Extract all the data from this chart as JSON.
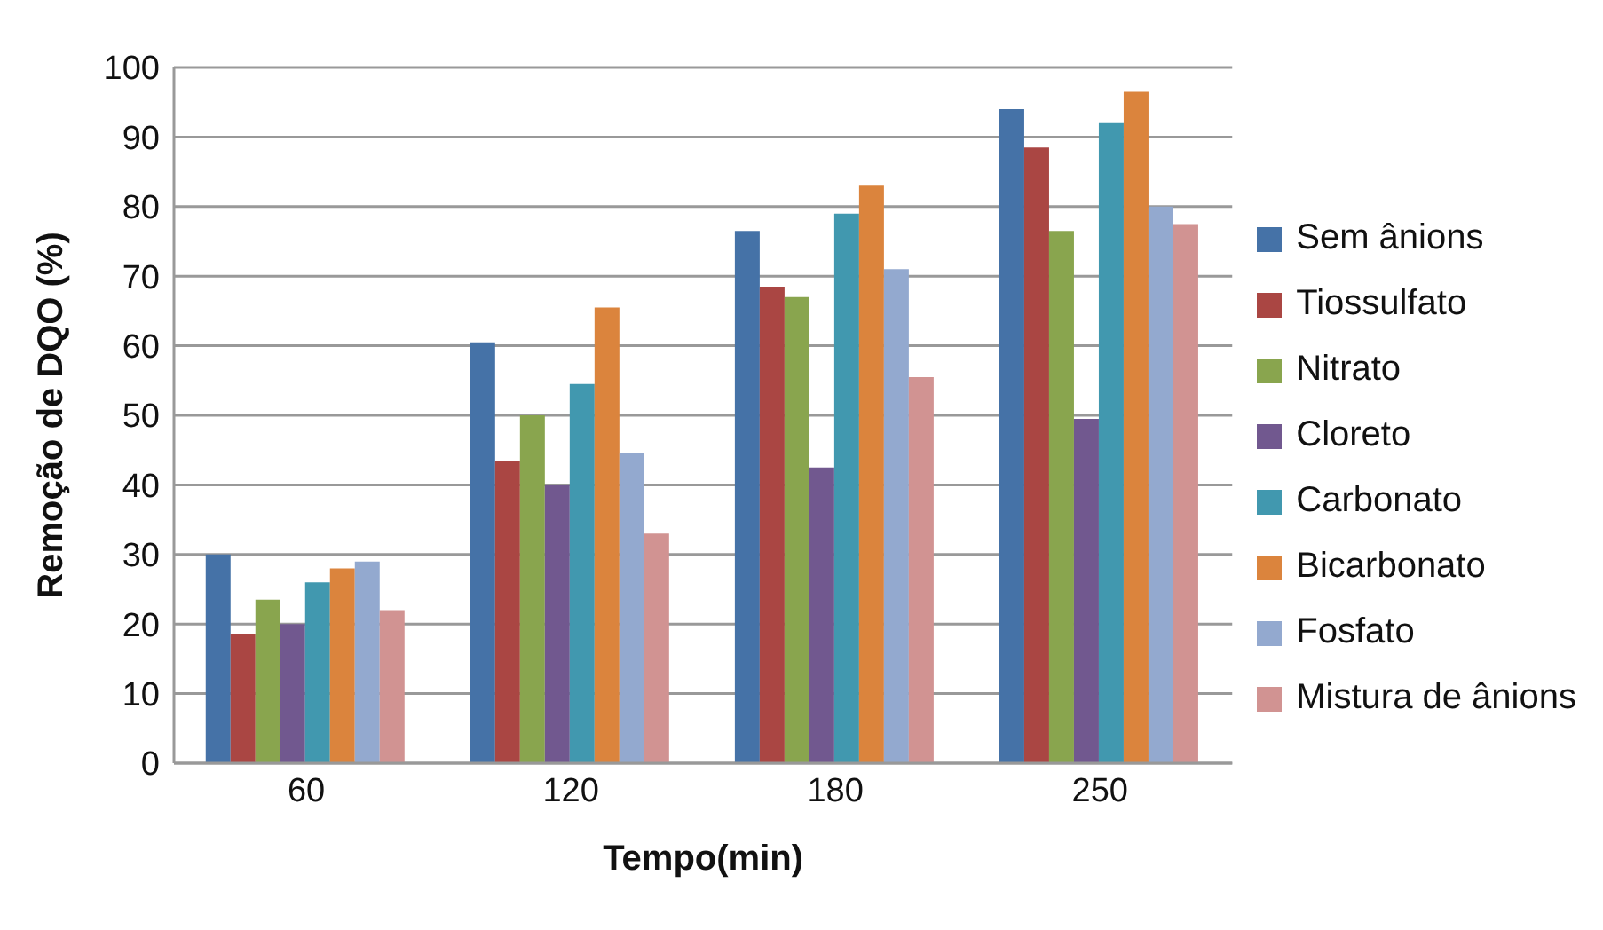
{
  "chart_data": {
    "type": "bar",
    "xlabel": "Tempo(min)",
    "ylabel": "Remoção de DQO (%)",
    "categories": [
      "60",
      "120",
      "180",
      "250"
    ],
    "series": [
      {
        "name": "Sem ânions",
        "color": "#4572a7",
        "values": [
          30,
          60.5,
          76.5,
          94
        ]
      },
      {
        "name": "Tiossulfato",
        "color": "#aa4643",
        "values": [
          18.5,
          43.5,
          68.5,
          88.5
        ]
      },
      {
        "name": "Nitrato",
        "color": "#89a54e",
        "values": [
          23.5,
          50,
          67,
          76.5
        ]
      },
      {
        "name": "Cloreto",
        "color": "#71588f",
        "values": [
          20,
          40,
          42.5,
          49.5
        ]
      },
      {
        "name": "Carbonato",
        "color": "#4198af",
        "values": [
          26,
          54.5,
          79,
          92
        ]
      },
      {
        "name": "Bicarbonato",
        "color": "#db843d",
        "values": [
          28,
          65.5,
          83,
          96.5
        ]
      },
      {
        "name": "Fosfato",
        "color": "#93a9cf",
        "values": [
          29,
          44.5,
          71,
          80
        ]
      },
      {
        "name": "Mistura de ânions",
        "color": "#d19392",
        "values": [
          22,
          33,
          55.5,
          77.5
        ]
      }
    ],
    "ylim": [
      0,
      100
    ],
    "yticks": [
      0,
      10,
      20,
      30,
      40,
      50,
      60,
      70,
      80,
      90,
      100
    ],
    "grid": "y",
    "legend": "right"
  }
}
